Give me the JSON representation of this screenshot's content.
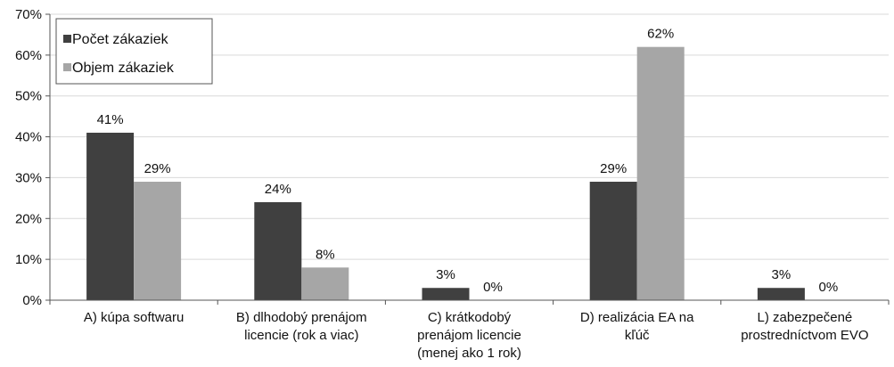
{
  "chart_data": {
    "type": "bar",
    "categories": [
      [
        "A) kúpa softwaru"
      ],
      [
        "B) dlhodobý prenájom",
        "licencie (rok a viac)"
      ],
      [
        "C) krátkodobý",
        "prenájom licencie",
        "(menej ako 1 rok)"
      ],
      [
        "D) realizácia EA na",
        "kľúč"
      ],
      [
        "L) zabezpečené",
        "prostredníctvom EVO"
      ]
    ],
    "series": [
      {
        "name": "Počet zákaziek",
        "values": [
          41,
          24,
          3,
          29,
          3
        ],
        "labels": [
          "41%",
          "24%",
          "3%",
          "29%",
          "3%"
        ],
        "color": "#404040"
      },
      {
        "name": "Objem zákaziek",
        "values": [
          29,
          8,
          0,
          62,
          0
        ],
        "labels": [
          "29%",
          "8%",
          "0%",
          "62%",
          "0%"
        ],
        "color": "#a6a6a6"
      }
    ],
    "yticks": [
      "0%",
      "10%",
      "20%",
      "30%",
      "40%",
      "50%",
      "60%",
      "70%"
    ],
    "ylim": [
      0,
      70
    ],
    "grid": true,
    "legend_position": "top-left"
  }
}
